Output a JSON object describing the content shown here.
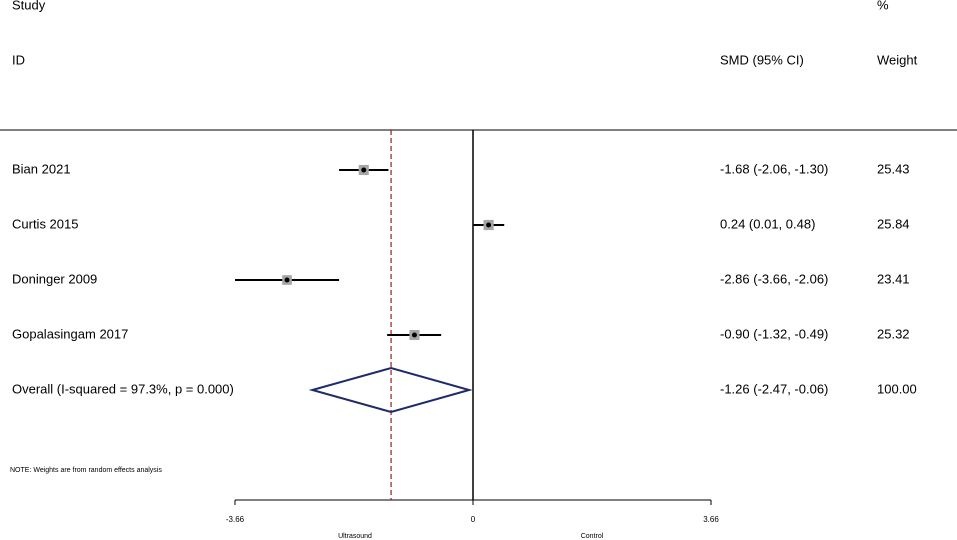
{
  "chart_data": {
    "type": "forest",
    "header": {
      "study": "Study",
      "id": "ID",
      "effect": "SMD (95% CI)",
      "percent": "%",
      "weight": "Weight"
    },
    "studies": [
      {
        "name": "Bian 2021",
        "smd": -1.68,
        "lower": -2.06,
        "upper": -1.3,
        "ci_label": "-1.68 (-2.06, -1.30)",
        "weight": 25.43
      },
      {
        "name": "Curtis 2015",
        "smd": 0.24,
        "lower": 0.01,
        "upper": 0.48,
        "ci_label": "0.24 (0.01, 0.48)",
        "weight": 25.84
      },
      {
        "name": "Doninger 2009",
        "smd": -2.86,
        "lower": -3.66,
        "upper": -2.06,
        "ci_label": "-2.86 (-3.66, -2.06)",
        "weight": 23.41
      },
      {
        "name": "Gopalasingam 2017",
        "smd": -0.9,
        "lower": -1.32,
        "upper": -0.49,
        "ci_label": "-0.90 (-1.32, -0.49)",
        "weight": 25.32
      }
    ],
    "overall": {
      "name": "Overall  (I-squared = 97.3%, p = 0.000)",
      "smd": -1.26,
      "lower": -2.47,
      "upper": -0.06,
      "ci_label": "-1.26 (-2.47, -0.06)",
      "weight": {
        "value": 100,
        "label": "100.00"
      }
    },
    "note": "NOTE: Weights are from random effects analysis",
    "xlim": [
      -3.66,
      3.66
    ],
    "xticks": [
      -3.66,
      0,
      3.66
    ],
    "null_value": 0,
    "x_left_label": "Ultrasound",
    "x_right_label": "Control",
    "marker_color": "#a6a6a6",
    "diamond_color": "#1f2a6b",
    "pooled_line_color": "#9b1c1c"
  }
}
